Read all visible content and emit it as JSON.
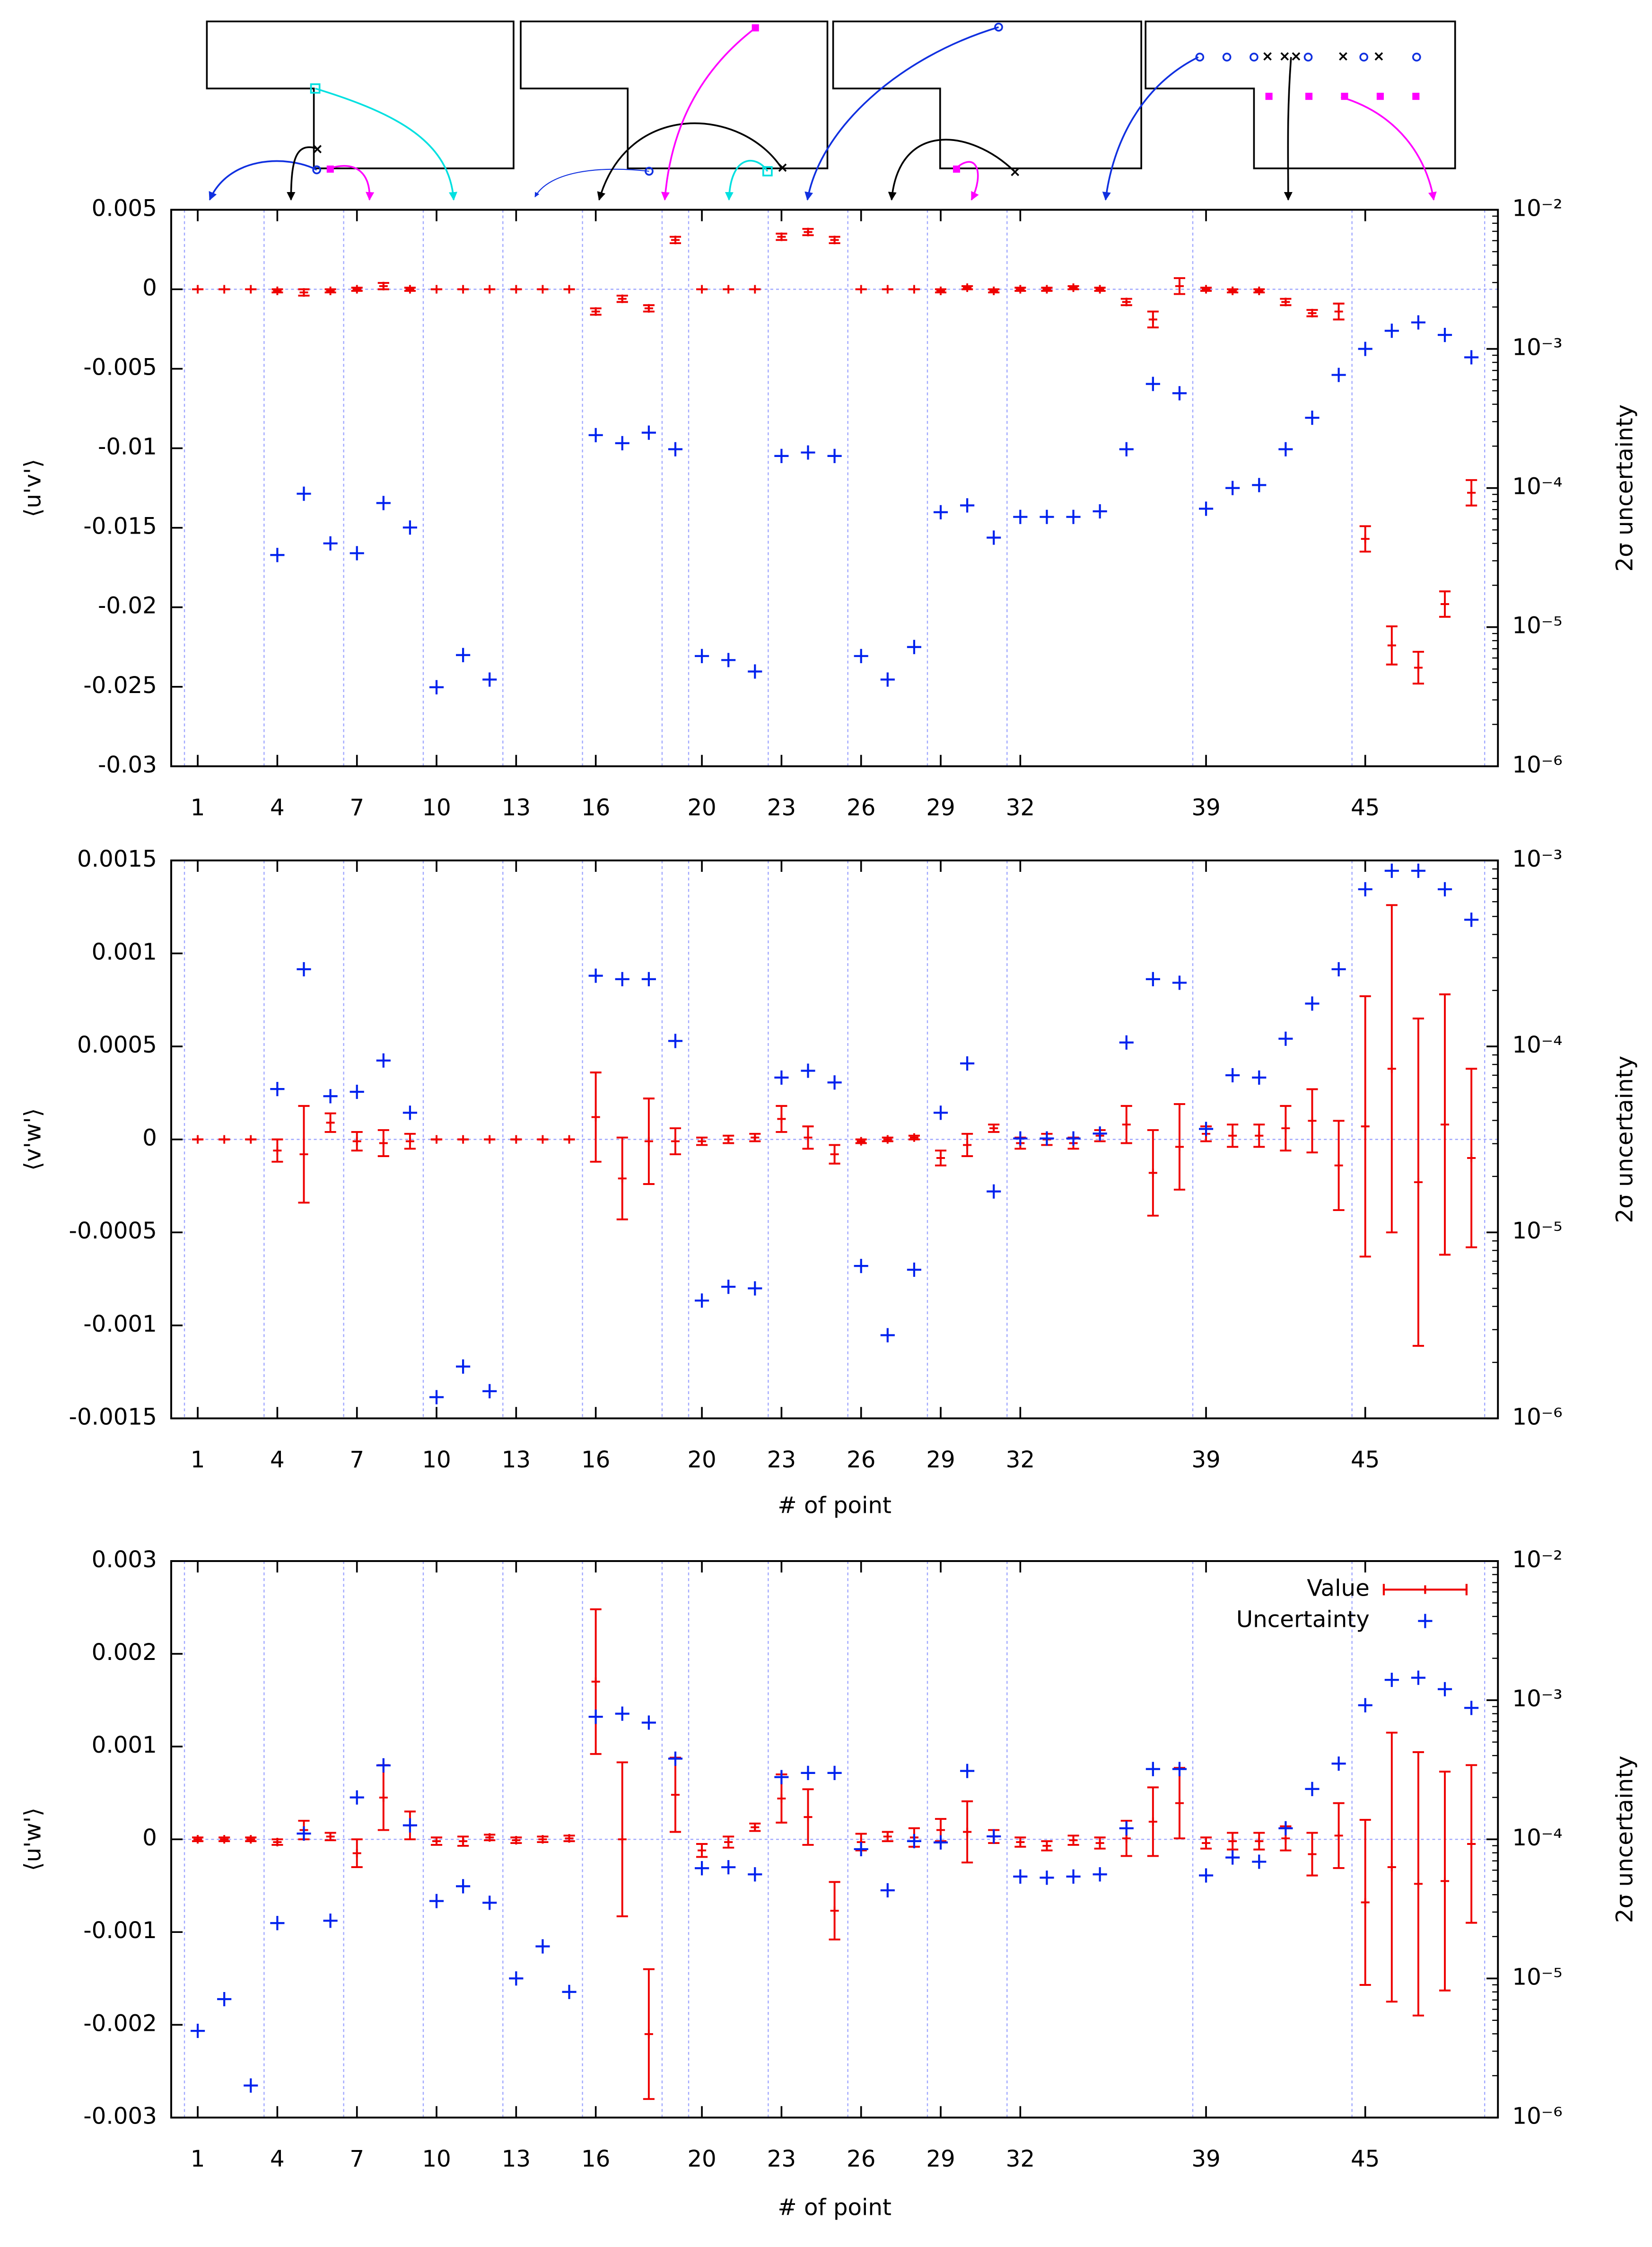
{
  "chart_data": [
    {
      "type": "errorbar",
      "ylabel": "⟨u'v'⟩",
      "y2label": "2σ uncertainty",
      "x": [
        1,
        2,
        3,
        4,
        5,
        6,
        7,
        8,
        9,
        10,
        11,
        12,
        13,
        14,
        15,
        16,
        17,
        18,
        19,
        20,
        21,
        22,
        23,
        24,
        25,
        26,
        27,
        28,
        29,
        30,
        31,
        32,
        33,
        34,
        35,
        36,
        37,
        38,
        39,
        40,
        41,
        42,
        43,
        44,
        45,
        46,
        47,
        48,
        49
      ],
      "xlim": [
        0,
        50
      ],
      "xticks": [
        1,
        4,
        7,
        10,
        13,
        16,
        20,
        23,
        26,
        29,
        32,
        39,
        45
      ],
      "ylim": [
        -0.03,
        0.005
      ],
      "yticks": [
        0.005,
        0,
        -0.005,
        -0.01,
        -0.015,
        -0.02,
        -0.025,
        -0.03
      ],
      "y2lim": [
        1e-06,
        0.01
      ],
      "y2log": true,
      "y2ticks": [
        {
          "value": 0.01,
          "label": "10⁻²"
        },
        {
          "value": 0.001,
          "label": "10⁻³"
        },
        {
          "value": 0.0001,
          "label": "10⁻⁴"
        },
        {
          "value": 1e-05,
          "label": "10⁻⁵"
        },
        {
          "value": 1e-06,
          "label": "10⁻⁶"
        }
      ],
      "separators": [
        0.5,
        3.5,
        6.5,
        9.5,
        12.5,
        15.5,
        18.5,
        19.5,
        22.5,
        25.5,
        28.5,
        31.5,
        38.5,
        44.5,
        49.5
      ],
      "hlines": [
        0
      ],
      "series": [
        {
          "color": "#ee0000",
          "values": [
            0,
            0,
            0,
            -0.0001,
            -0.0002,
            -0.0001,
            0,
            0.0002,
            0,
            0,
            0,
            0,
            0,
            0,
            0,
            -0.0014,
            -0.0006,
            -0.0012,
            0.0031,
            0,
            0,
            0,
            0.0033,
            0.0036,
            0.0031,
            0,
            0,
            0,
            -0.0001,
            0.0001,
            -0.0001,
            0,
            0,
            0.0001,
            0,
            -0.0008,
            -0.0019,
            0.0002,
            0,
            -0.0001,
            -0.0001,
            -0.0008,
            -0.0015,
            -0.0014,
            -0.0157,
            -0.0224,
            -0.0238,
            -0.0198,
            -0.0128
          ],
          "errors": [
            0,
            0,
            0,
            0.0001,
            0.0002,
            0.0001,
            0.0001,
            0.0002,
            0.0001,
            0,
            0,
            0,
            0,
            0,
            0,
            0.0002,
            0.0002,
            0.0002,
            0.0002,
            0,
            0,
            0,
            0.0002,
            0.0002,
            0.0002,
            0,
            0,
            0,
            0.0001,
            0.0001,
            0.0001,
            0.0001,
            0.0001,
            0.0001,
            0.0001,
            0.0002,
            0.0005,
            0.0005,
            0.0001,
            0.0001,
            0.0001,
            0.0002,
            0.0002,
            0.0005,
            0.0008,
            0.0012,
            0.001,
            0.0008,
            0.0008
          ]
        },
        {
          "color": "#0022ee",
          "axis": "y2",
          "values": [
            null,
            null,
            null,
            3.3e-05,
            9.1e-05,
            4e-05,
            3.4e-05,
            7.8e-05,
            5.2e-05,
            3.7e-06,
            6.3e-06,
            4.2e-06,
            null,
            null,
            null,
            0.00024,
            0.00021,
            0.00025,
            0.00019,
            6.2e-06,
            5.8e-06,
            4.8e-06,
            0.00017,
            0.00018,
            0.00017,
            6.2e-06,
            4.2e-06,
            7.2e-06,
            6.7e-05,
            7.5e-05,
            4.4e-05,
            6.2e-05,
            6.2e-05,
            6.2e-05,
            6.8e-05,
            0.00019,
            0.00056,
            0.00048,
            7.1e-05,
            0.0001,
            0.000105,
            0.00019,
            0.00032,
            0.00065,
            0.001,
            0.00135,
            0.00155,
            0.00126,
            0.00087
          ]
        }
      ]
    },
    {
      "type": "errorbar",
      "ylabel": "⟨v'w'⟩",
      "y2label": "2σ uncertainty",
      "xlabel": "# of point",
      "x": [
        1,
        2,
        3,
        4,
        5,
        6,
        7,
        8,
        9,
        10,
        11,
        12,
        13,
        14,
        15,
        16,
        17,
        18,
        19,
        20,
        21,
        22,
        23,
        24,
        25,
        26,
        27,
        28,
        29,
        30,
        31,
        32,
        33,
        34,
        35,
        36,
        37,
        38,
        39,
        40,
        41,
        42,
        43,
        44,
        45,
        46,
        47,
        48,
        49
      ],
      "xlim": [
        0,
        50
      ],
      "xticks": [
        1,
        4,
        7,
        10,
        13,
        16,
        20,
        23,
        26,
        29,
        32,
        39,
        45
      ],
      "ylim": [
        -0.0015,
        0.0015
      ],
      "yticks": [
        0.0015,
        0.001,
        0.0005,
        0,
        -0.0005,
        -0.001,
        -0.0015
      ],
      "y2lim": [
        1e-06,
        0.001
      ],
      "y2log": true,
      "y2ticks": [
        {
          "value": 0.001,
          "label": "10⁻³"
        },
        {
          "value": 0.0001,
          "label": "10⁻⁴"
        },
        {
          "value": 1e-05,
          "label": "10⁻⁵"
        },
        {
          "value": 1e-06,
          "label": "10⁻⁶"
        }
      ],
      "separators": [
        0.5,
        3.5,
        6.5,
        9.5,
        12.5,
        15.5,
        18.5,
        19.5,
        22.5,
        25.5,
        28.5,
        31.5,
        38.5,
        44.5,
        49.5
      ],
      "hlines": [
        0
      ],
      "series": [
        {
          "color": "#ee0000",
          "values": [
            0,
            0,
            0,
            -6e-05,
            -8e-05,
            9e-05,
            -1e-05,
            -2e-05,
            -1e-05,
            0,
            0,
            0,
            0,
            0,
            0,
            0.00012,
            -0.00021,
            -1e-05,
            -1e-05,
            -1e-05,
            0,
            1e-05,
            0.00011,
            1e-05,
            -8e-05,
            -1e-05,
            0,
            1e-05,
            -0.0001,
            -3e-05,
            6e-05,
            -2e-05,
            0,
            -2e-05,
            2e-05,
            8e-05,
            -0.00018,
            -4e-05,
            3e-05,
            2e-05,
            2e-05,
            6e-05,
            0.0001,
            -0.00014,
            7e-05,
            0.00038,
            -0.00023,
            8e-05,
            -0.0001
          ],
          "errors": [
            0,
            0,
            0,
            6e-05,
            0.00026,
            5e-05,
            5e-05,
            7e-05,
            4e-05,
            0,
            0,
            0,
            0,
            0,
            0,
            0.00024,
            0.00022,
            0.00023,
            7e-05,
            2e-05,
            2e-05,
            2e-05,
            7e-05,
            6e-05,
            5e-05,
            1e-05,
            1e-05,
            1e-05,
            4e-05,
            6e-05,
            2e-05,
            3e-05,
            3e-05,
            3e-05,
            3e-05,
            0.0001,
            0.00023,
            0.00023,
            4e-05,
            6e-05,
            6e-05,
            0.00012,
            0.00017,
            0.00024,
            0.0007,
            0.00088,
            0.00088,
            0.0007,
            0.00048
          ]
        },
        {
          "color": "#0022ee",
          "axis": "y2",
          "values": [
            null,
            null,
            null,
            5.9e-05,
            0.00026,
            5.4e-05,
            5.7e-05,
            8.4e-05,
            4.4e-05,
            1.3e-06,
            1.9e-06,
            1.4e-06,
            null,
            null,
            null,
            0.00024,
            0.00023,
            0.00023,
            0.000107,
            4.3e-06,
            5.1e-06,
            5e-06,
            6.8e-05,
            7.4e-05,
            6.4e-05,
            6.6e-06,
            2.8e-06,
            6.3e-06,
            4.4e-05,
            8.1e-05,
            1.66e-05,
            3.2e-05,
            3.2e-05,
            3.2e-05,
            3.4e-05,
            0.000105,
            0.00023,
            0.00022,
            3.6e-05,
            7e-05,
            6.8e-05,
            0.00011,
            0.00017,
            0.00026,
            0.0007,
            0.00088,
            0.00088,
            0.0007,
            0.00048
          ]
        }
      ]
    },
    {
      "type": "errorbar",
      "ylabel": "⟨u'w'⟩",
      "y2label": "2σ uncertainty",
      "xlabel": "# of point",
      "legend": "top right",
      "x": [
        1,
        2,
        3,
        4,
        5,
        6,
        7,
        8,
        9,
        10,
        11,
        12,
        13,
        14,
        15,
        16,
        17,
        18,
        19,
        20,
        21,
        22,
        23,
        24,
        25,
        26,
        27,
        28,
        29,
        30,
        31,
        32,
        33,
        34,
        35,
        36,
        37,
        38,
        39,
        40,
        41,
        42,
        43,
        44,
        45,
        46,
        47,
        48,
        49
      ],
      "xlim": [
        0,
        50
      ],
      "xticks": [
        1,
        4,
        7,
        10,
        13,
        16,
        20,
        23,
        26,
        29,
        32,
        39,
        45
      ],
      "ylim": [
        -0.003,
        0.003
      ],
      "yticks": [
        0.003,
        0.002,
        0.001,
        0,
        -0.001,
        -0.002,
        -0.003
      ],
      "y2lim": [
        1e-06,
        0.01
      ],
      "y2log": true,
      "y2ticks": [
        {
          "value": 0.01,
          "label": "10⁻²"
        },
        {
          "value": 0.001,
          "label": "10⁻³"
        },
        {
          "value": 0.0001,
          "label": "10⁻⁴"
        },
        {
          "value": 1e-05,
          "label": "10⁻⁵"
        },
        {
          "value": 1e-06,
          "label": "10⁻⁶"
        }
      ],
      "separators": [
        0.5,
        3.5,
        6.5,
        9.5,
        12.5,
        15.5,
        18.5,
        19.5,
        22.5,
        25.5,
        28.5,
        31.5,
        38.5,
        44.5,
        49.5
      ],
      "hlines": [
        0
      ],
      "series": [
        {
          "name": "Value",
          "color": "#ee0000",
          "values": [
            0,
            0,
            0,
            -3e-05,
            0.0001,
            3e-05,
            -0.00015,
            0.00045,
            0.00015,
            -2e-05,
            -2e-05,
            2e-05,
            -1e-05,
            0,
            1e-05,
            0.0017,
            0,
            -0.0021,
            0.00048,
            -0.00012,
            -3e-05,
            0.00013,
            0.00044,
            0.00024,
            -0.00077,
            -3e-05,
            3e-05,
            2e-05,
            0.0001,
            8e-05,
            3e-05,
            -3e-05,
            -7e-05,
            -1e-05,
            -4e-05,
            1e-05,
            0.00019,
            0.00039,
            -4e-05,
            -2e-05,
            -2e-05,
            1e-05,
            -0.00016,
            4e-05,
            -0.00068,
            -0.0003,
            -0.00048,
            -0.00045,
            -5e-05
          ],
          "errors": [
            2e-05,
            2e-05,
            2e-05,
            3e-05,
            0.0001,
            4e-05,
            0.00015,
            0.00035,
            0.00015,
            4e-05,
            5e-05,
            3e-05,
            3e-05,
            3e-05,
            3e-05,
            0.00078,
            0.00083,
            0.0007,
            0.0004,
            7e-05,
            6e-05,
            4e-05,
            0.00026,
            0.0003,
            0.00031,
            9e-05,
            5e-05,
            0.0001,
            0.00012,
            0.00033,
            7e-05,
            5e-05,
            5e-05,
            5e-05,
            6e-05,
            0.00019,
            0.00037,
            0.00038,
            6e-05,
            9e-05,
            9e-05,
            0.00013,
            0.00023,
            0.00035,
            0.00089,
            0.00145,
            0.00142,
            0.00118,
            0.00085
          ]
        },
        {
          "name": "Uncertainty",
          "color": "#0022ee",
          "axis": "y2",
          "values": [
            4.2e-06,
            7.1e-06,
            1.7e-06,
            2.5e-05,
            0.00011,
            2.6e-05,
            0.0002,
            0.00034,
            0.000126,
            3.6e-05,
            4.6e-05,
            3.5e-05,
            1e-05,
            1.7e-05,
            8e-06,
            0.00076,
            0.0008,
            0.00069,
            0.00038,
            6.2e-05,
            6.3e-05,
            5.6e-05,
            0.00028,
            0.0003,
            0.0003,
            8.5e-05,
            4.3e-05,
            9.7e-05,
            9.5e-05,
            0.00031,
            0.000105,
            5.4e-05,
            5.3e-05,
            5.4e-05,
            5.6e-05,
            0.00012,
            0.00032,
            0.00032,
            5.5e-05,
            7.4e-05,
            6.9e-05,
            0.00012,
            0.00023,
            0.00035,
            0.00092,
            0.0014,
            0.00145,
            0.0012,
            0.00088
          ]
        }
      ]
    }
  ]
}
